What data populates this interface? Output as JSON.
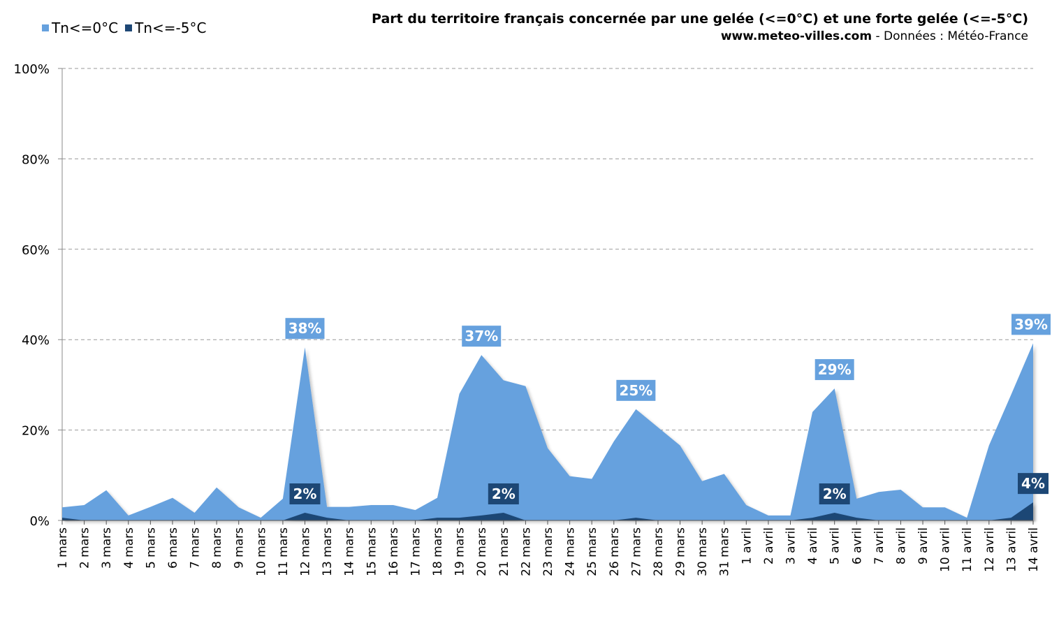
{
  "chart_data": {
    "type": "area",
    "title": "Part du territoire français concernée par une gelée (<=0°C) et une forte gelée (<=-5°C)",
    "subtitle_site": "www.meteo-villes.com",
    "subtitle_rest": " - Données : Météo-France",
    "ylim": [
      0,
      100
    ],
    "yticks": [
      "0%",
      "20%",
      "40%",
      "60%",
      "80%",
      "100%"
    ],
    "ytick_values": [
      0,
      20,
      40,
      60,
      80,
      100
    ],
    "grid": true,
    "legend_position": "top-left",
    "categories": [
      "1 mars",
      "2 mars",
      "3 mars",
      "4 mars",
      "5 mars",
      "6 mars",
      "7 mars",
      "8 mars",
      "9 mars",
      "10 mars",
      "11 mars",
      "12 mars",
      "13 mars",
      "14 mars",
      "15 mars",
      "16 mars",
      "17 mars",
      "18 mars",
      "19 mars",
      "20 mars",
      "21 mars",
      "22 mars",
      "23 mars",
      "24 mars",
      "25 mars",
      "26 mars",
      "27 mars",
      "28 mars",
      "29 mars",
      "30 mars",
      "31 mars",
      "1 avril",
      "2 avril",
      "3 avril",
      "4 avril",
      "5 avril",
      "6 avril",
      "7 avril",
      "8 avril",
      "9 avril",
      "10 avril",
      "11 avril",
      "12 avril",
      "13 avril",
      "14 avril"
    ],
    "series": [
      {
        "name": "Tn<=0°C",
        "color": "#66a1de",
        "values": [
          2.9,
          3.4,
          6.7,
          1.1,
          3.0,
          5.0,
          1.7,
          7.3,
          2.9,
          0.6,
          4.8,
          38.3,
          3.0,
          3.0,
          3.4,
          3.4,
          2.3,
          5.0,
          28.0,
          36.6,
          31.0,
          29.7,
          16.0,
          9.8,
          9.2,
          17.5,
          24.6,
          20.6,
          16.6,
          8.7,
          10.3,
          3.4,
          1.1,
          1.1,
          24.0,
          29.2,
          4.8,
          6.3,
          6.8,
          2.9,
          2.9,
          0.6,
          16.6,
          27.8,
          39.2
        ],
        "labels": [
          {
            "index": 11,
            "text": "38%"
          },
          {
            "index": 19,
            "text": "37%"
          },
          {
            "index": 26,
            "text": "25%"
          },
          {
            "index": 35,
            "text": "29%"
          },
          {
            "index": 44,
            "text": "39%"
          }
        ]
      },
      {
        "name": "Tn<=-5°C",
        "color": "#1d4775",
        "values": [
          0.6,
          0,
          0,
          0,
          0,
          0,
          0,
          0,
          0,
          0,
          0,
          1.7,
          0.6,
          0,
          0,
          0,
          0,
          0.6,
          0.6,
          1.1,
          1.7,
          0,
          0,
          0,
          0,
          0,
          0.6,
          0,
          0,
          0,
          0,
          0,
          0,
          0,
          0.6,
          1.7,
          0.6,
          0,
          0,
          0,
          0,
          0,
          0,
          0.6,
          4.0
        ],
        "labels": [
          {
            "index": 11,
            "text": "2%"
          },
          {
            "index": 20,
            "text": "2%"
          },
          {
            "index": 35,
            "text": "2%"
          },
          {
            "index": 44,
            "text": "4%"
          }
        ]
      }
    ]
  }
}
